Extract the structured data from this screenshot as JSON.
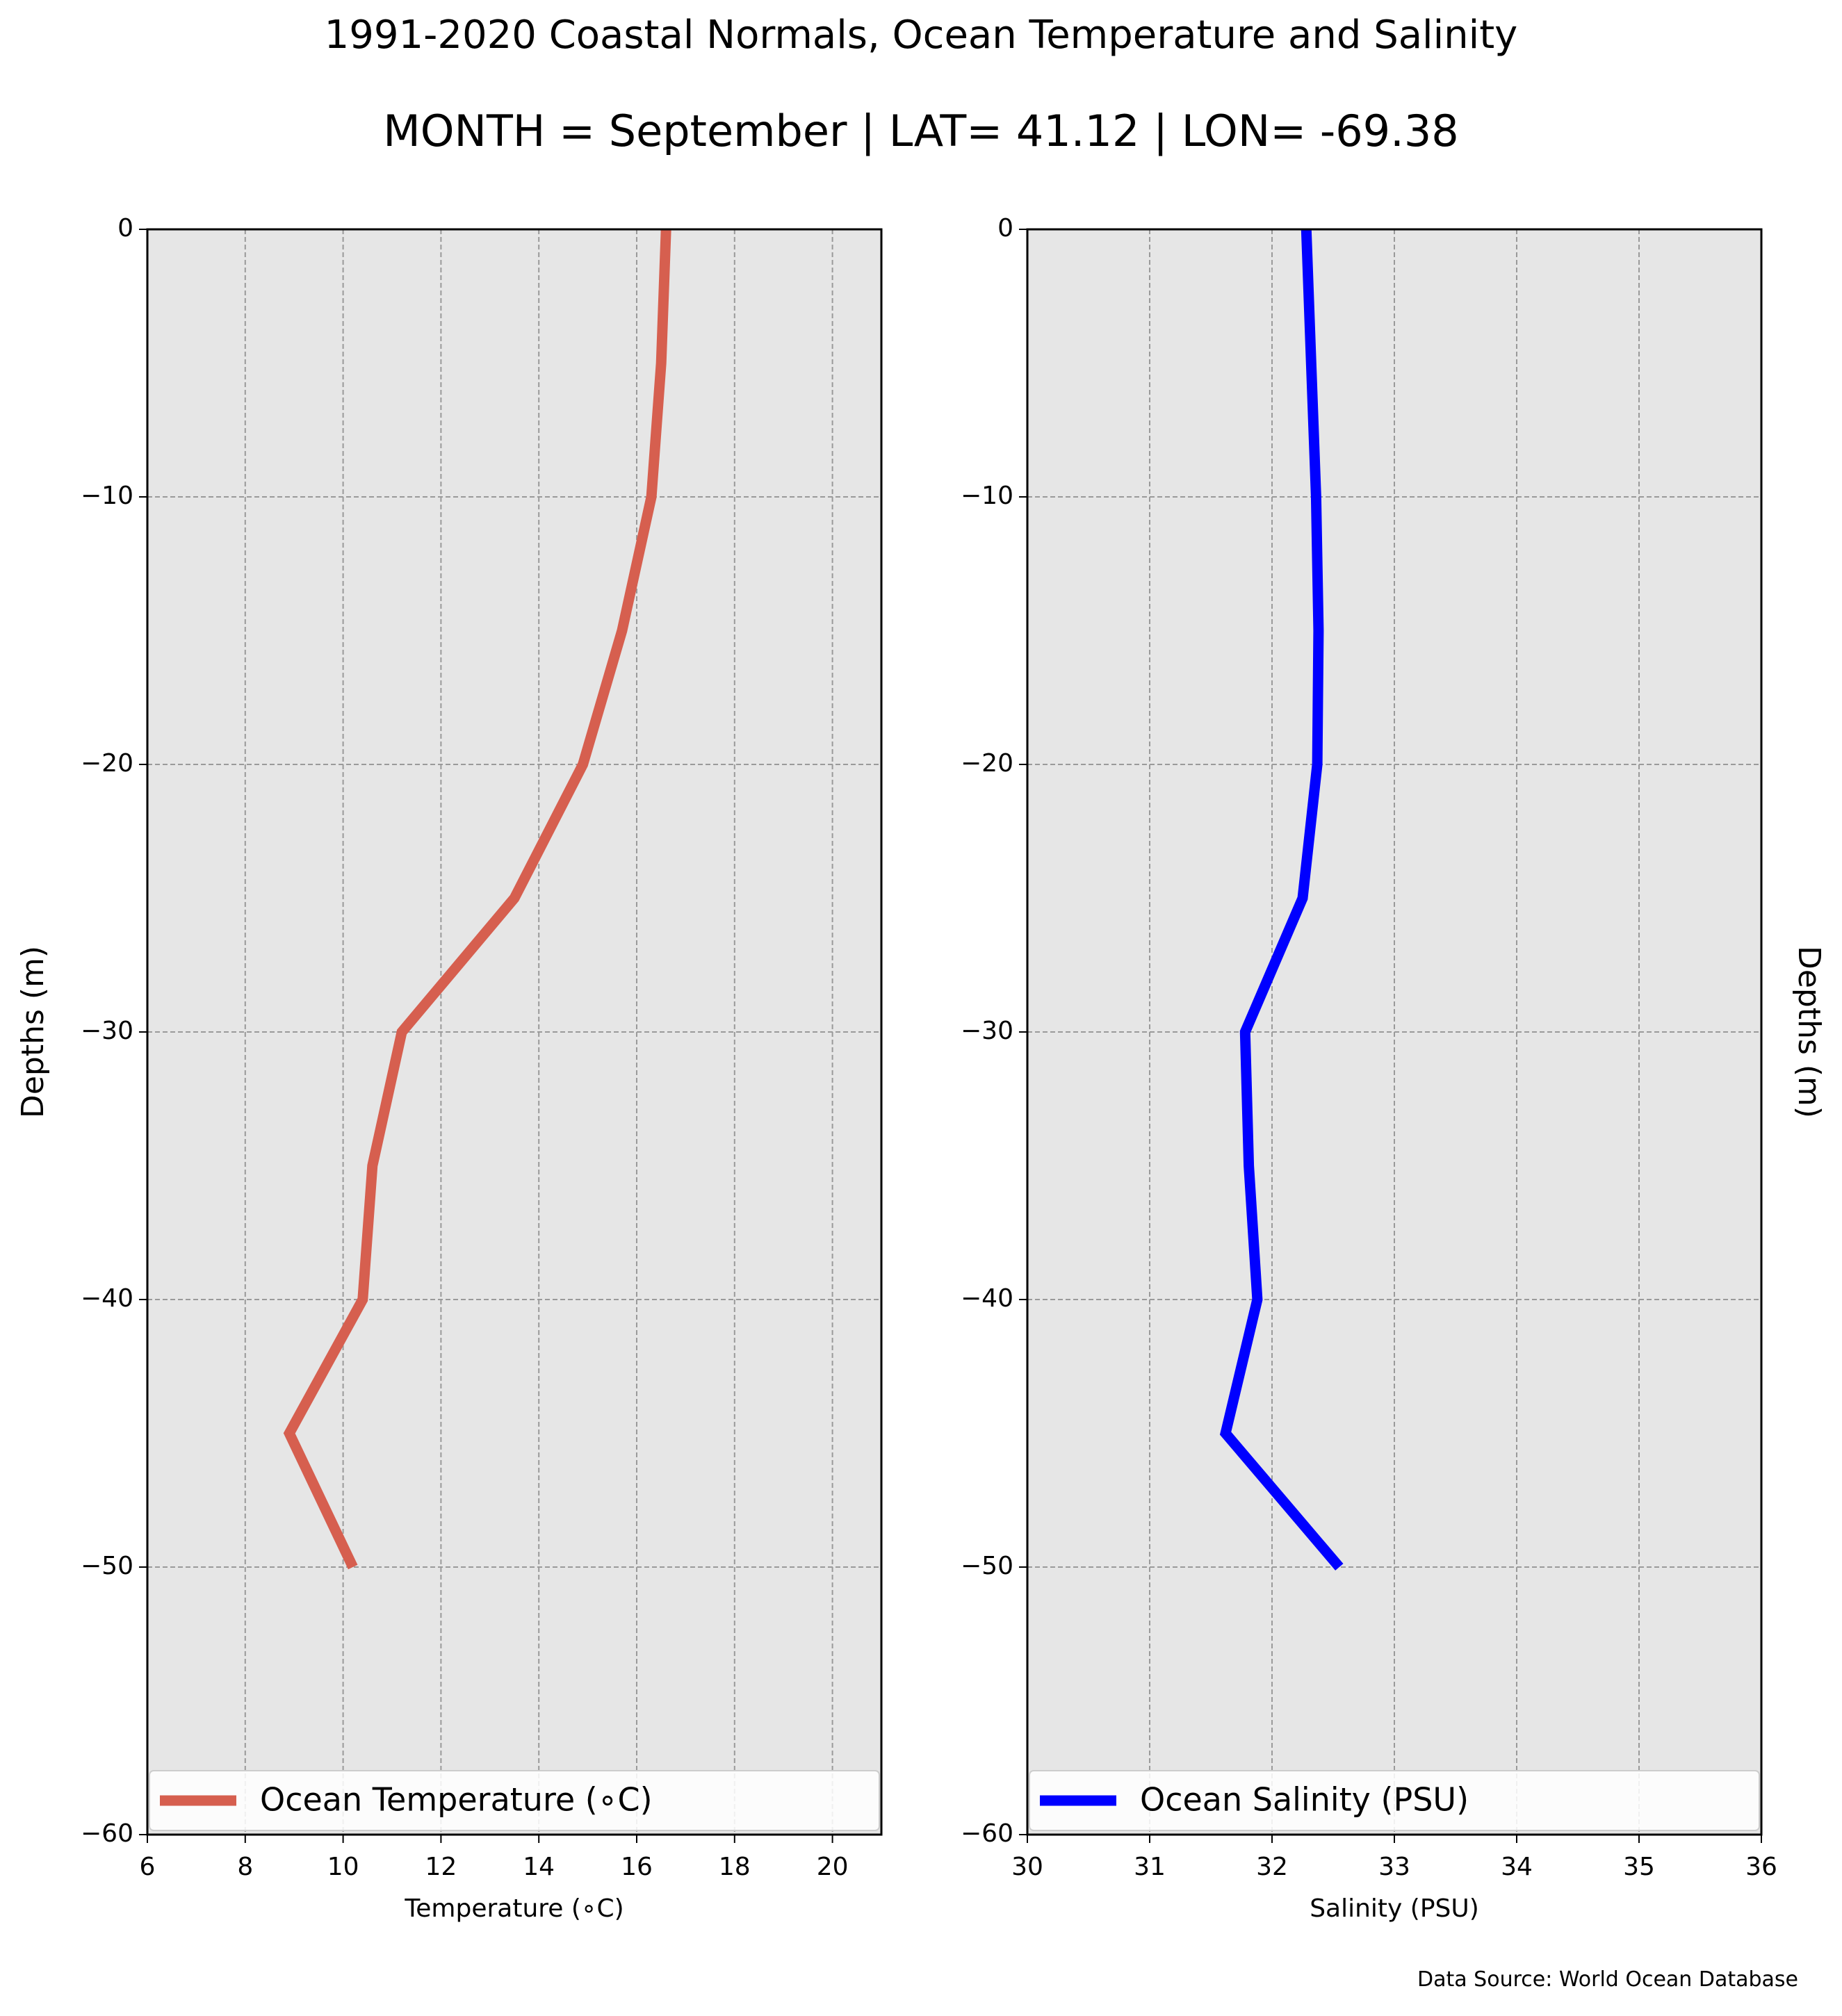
{
  "figure": {
    "title": "1991-2020 Coastal Normals, Ocean Temperature and Salinity",
    "subtitle": "MONTH = September | LAT= 41.12 | LON= -69.38",
    "source_note": "Data Source: World Ocean Database",
    "background_color": "#ffffff",
    "axes_background_color": "#e6e6e6",
    "grid_color": "#9a9a9a"
  },
  "chart_data": [
    {
      "type": "line",
      "orientation": "profile",
      "title": "",
      "xlabel": "Temperature ($^\\circ$C)",
      "xlabel_display": "Temperature (∘C)",
      "ylabel": "Depths (m)",
      "xlim": [
        6,
        21
      ],
      "ylim": [
        -60,
        0
      ],
      "xticks": [
        6,
        8,
        10,
        12,
        14,
        16,
        18,
        20
      ],
      "xtick_labels": [
        "6",
        "8",
        "10",
        "12",
        "14",
        "16",
        "18",
        "20"
      ],
      "yticks": [
        0,
        -10,
        -20,
        -30,
        -40,
        -50,
        -60
      ],
      "ytick_labels": [
        "0",
        "−10",
        "−20",
        "−30",
        "−40",
        "−50",
        "−60"
      ],
      "grid": true,
      "legend": "lower-center",
      "series": [
        {
          "name": "Ocean Temperature (∘C)",
          "color": "#d65f4f",
          "x": [
            16.6,
            16.5,
            16.3,
            15.7,
            14.9,
            13.5,
            11.2,
            10.6,
            10.4,
            8.9,
            10.2
          ],
          "y": [
            0,
            -5,
            -10,
            -15,
            -20,
            -25,
            -30,
            -35,
            -40,
            -45,
            -50
          ]
        }
      ]
    },
    {
      "type": "line",
      "orientation": "profile",
      "title": "",
      "xlabel": "Salinity (PSU)",
      "ylabel": "Depths (m)",
      "xlim": [
        30,
        36
      ],
      "ylim": [
        -60,
        0
      ],
      "xticks": [
        30,
        31,
        32,
        33,
        34,
        35,
        36
      ],
      "xtick_labels": [
        "30",
        "31",
        "32",
        "33",
        "34",
        "35",
        "36"
      ],
      "yticks": [
        0,
        -10,
        -20,
        -30,
        -40,
        -50,
        -60
      ],
      "ytick_labels": [
        "0",
        "−10",
        "−20",
        "−30",
        "−40",
        "−50",
        "−60"
      ],
      "grid": true,
      "legend": "lower-center",
      "series": [
        {
          "name": "Ocean Salinity (PSU)",
          "color": "#0000ff",
          "x": [
            32.28,
            32.32,
            32.36,
            32.38,
            32.37,
            32.25,
            31.78,
            31.81,
            31.88,
            31.62,
            32.55
          ],
          "y": [
            0,
            -5,
            -10,
            -15,
            -20,
            -25,
            -30,
            -35,
            -40,
            -45,
            -50
          ]
        }
      ]
    }
  ]
}
